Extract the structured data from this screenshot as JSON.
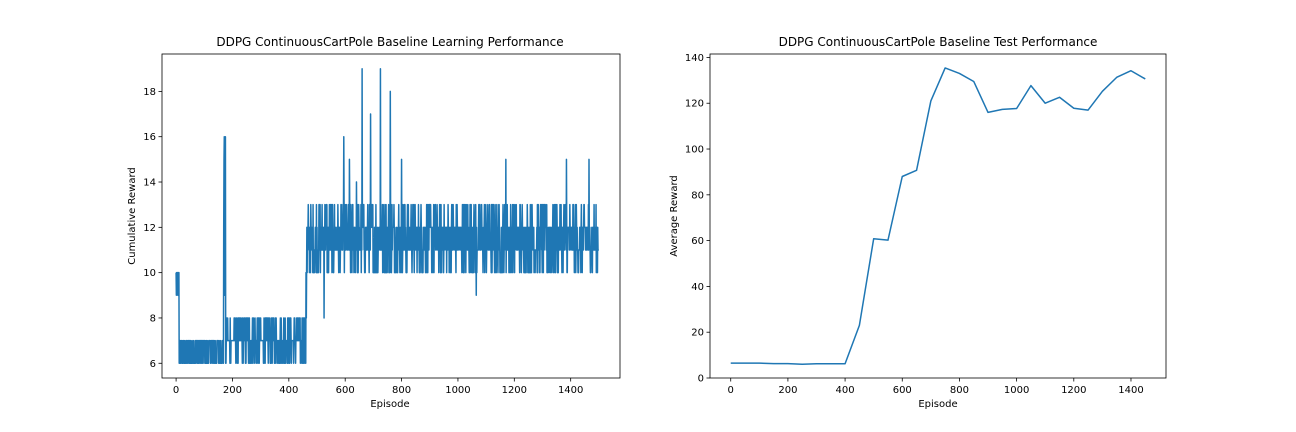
{
  "chart_data": [
    {
      "type": "line",
      "title": "DDPG ContinuousCartPole Baseline Learning Performance",
      "xlabel": "Episode",
      "ylabel": "Cumulative Reward",
      "xlim": [
        -50,
        1575
      ],
      "ylim": [
        5.35,
        19.65
      ],
      "xticks": [
        0,
        200,
        400,
        600,
        800,
        1000,
        1200,
        1400
      ],
      "yticks": [
        6,
        8,
        10,
        12,
        14,
        16,
        18
      ],
      "grid": false,
      "color": "#1f77b4",
      "series_description": "per-episode cumulative reward, 1500 episodes",
      "segments": [
        {
          "x": [
            0,
            10
          ],
          "level": 10,
          "low": 9,
          "high": 10
        },
        {
          "x": [
            11,
            168
          ],
          "level": 6.5,
          "low": 6,
          "high": 7
        },
        {
          "x": [
            169,
            175
          ],
          "level": 10,
          "low": 8,
          "high": 16
        },
        {
          "x": [
            176,
            460
          ],
          "level": 7.5,
          "low": 6,
          "high": 8
        },
        {
          "x": [
            461,
            470
          ],
          "level": 10,
          "low": 7,
          "high": 14
        },
        {
          "x": [
            471,
            1500
          ],
          "level": 11.5,
          "low": 10,
          "high": 13
        }
      ],
      "spikes": [
        {
          "x": 171,
          "y": 16
        },
        {
          "x": 525,
          "y": 8
        },
        {
          "x": 595,
          "y": 16
        },
        {
          "x": 615,
          "y": 15
        },
        {
          "x": 640,
          "y": 14
        },
        {
          "x": 660,
          "y": 19
        },
        {
          "x": 690,
          "y": 17
        },
        {
          "x": 725,
          "y": 19
        },
        {
          "x": 760,
          "y": 18
        },
        {
          "x": 800,
          "y": 15
        },
        {
          "x": 1065,
          "y": 9
        },
        {
          "x": 1170,
          "y": 9
        },
        {
          "x": 1170,
          "y": 15
        },
        {
          "x": 1385,
          "y": 15
        },
        {
          "x": 1465,
          "y": 15
        }
      ]
    },
    {
      "type": "line",
      "title": "DDPG ContinuousCartPole Baseline Test Performance",
      "xlabel": "Episode",
      "ylabel": "Average Reward",
      "xlim": [
        -72.5,
        1522.5
      ],
      "ylim": [
        0,
        141.5
      ],
      "xticks": [
        0,
        200,
        400,
        600,
        800,
        1000,
        1200,
        1400
      ],
      "yticks": [
        0,
        20,
        40,
        60,
        80,
        100,
        120,
        140
      ],
      "grid": false,
      "color": "#1f77b4",
      "x": [
        0,
        50,
        100,
        150,
        200,
        250,
        300,
        350,
        400,
        450,
        500,
        550,
        600,
        650,
        700,
        750,
        800,
        850,
        900,
        950,
        1000,
        1050,
        1100,
        1150,
        1200,
        1250,
        1300,
        1350,
        1400,
        1450
      ],
      "y": [
        6.5,
        6.5,
        6.5,
        6.3,
        6.3,
        6.0,
        6.2,
        6.2,
        6.2,
        23,
        60.8,
        60.2,
        88,
        90.7,
        121,
        135.4,
        133,
        129.5,
        116,
        117.3,
        117.7,
        127.7,
        120,
        122.6,
        117.8,
        117,
        125.2,
        131.3,
        134.2,
        130.6
      ]
    }
  ]
}
